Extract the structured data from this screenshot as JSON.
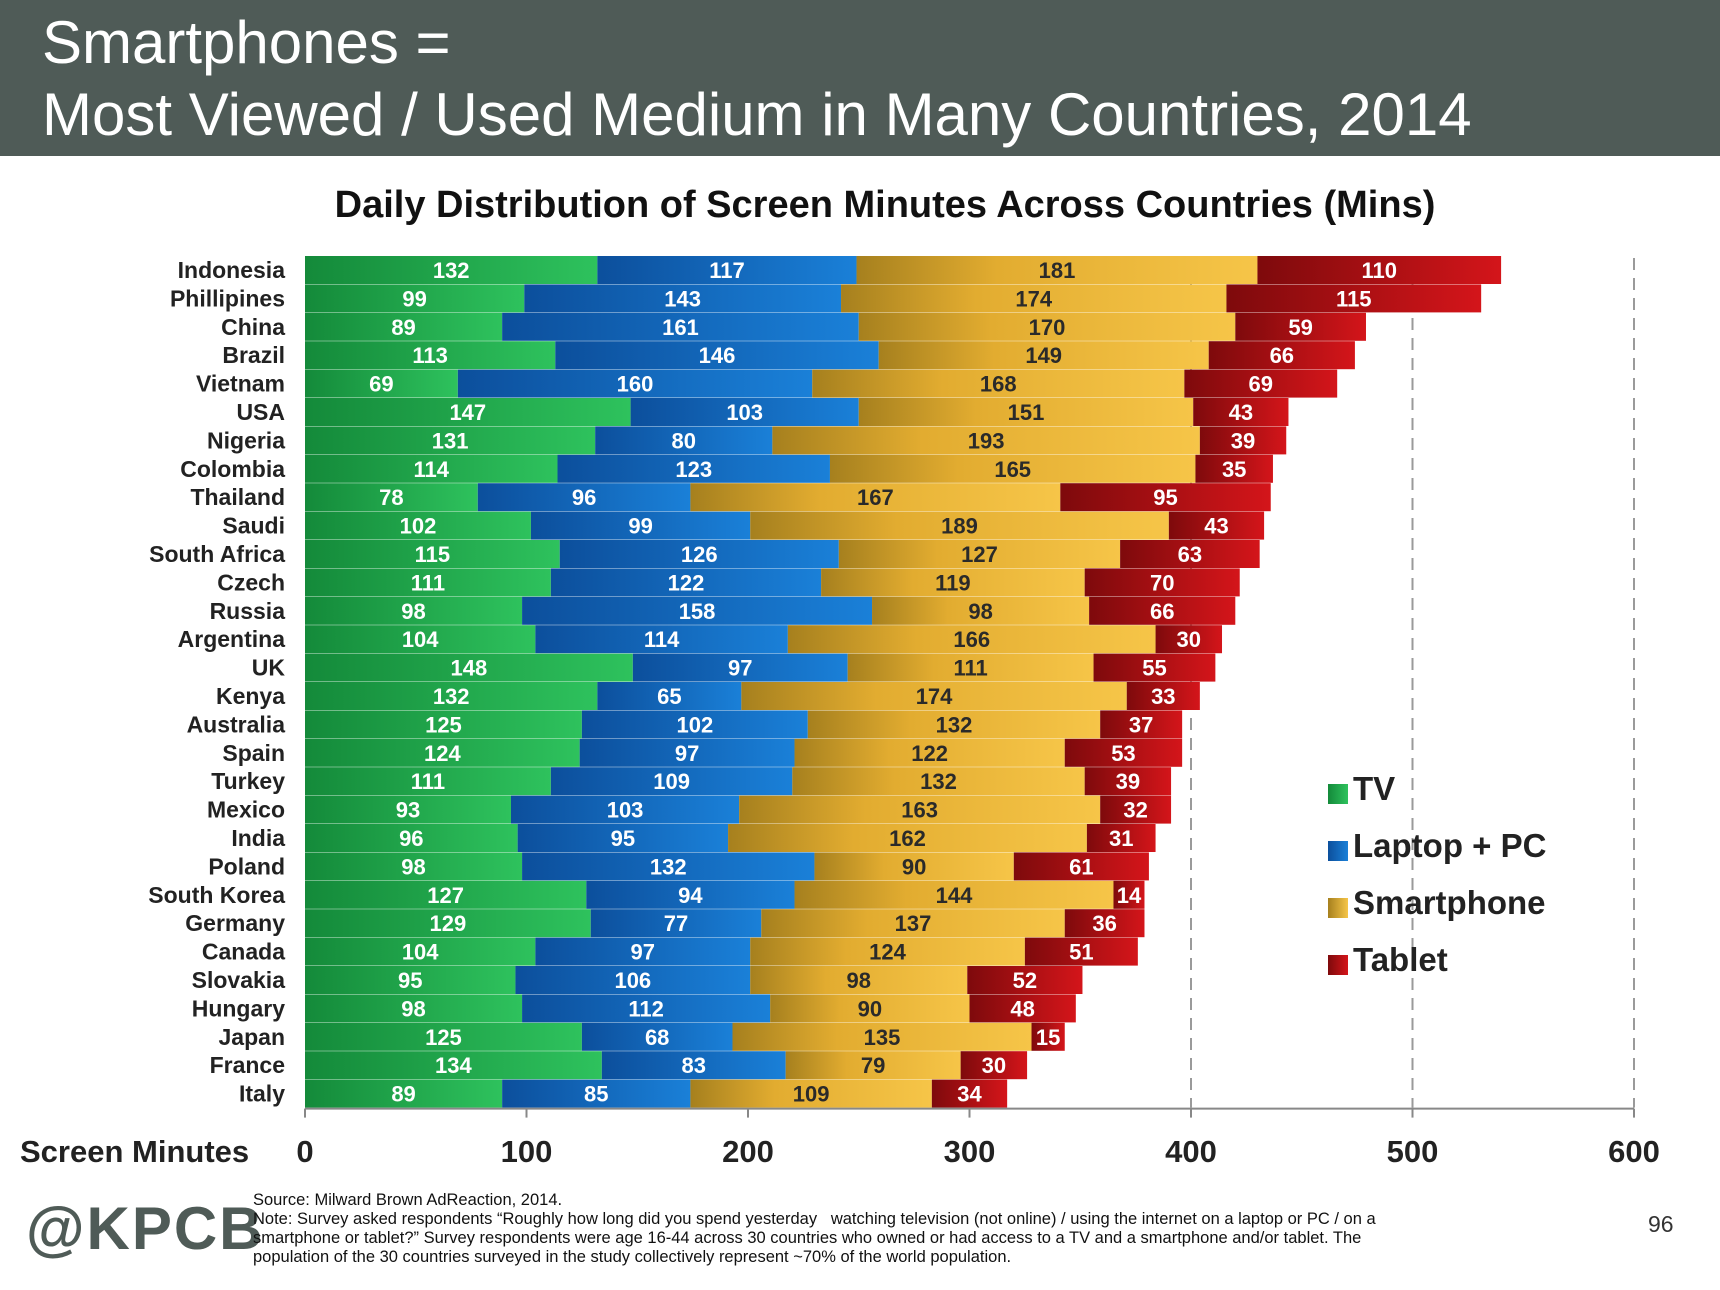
{
  "header": {
    "title_line1": "Smartphones =",
    "title_line2": "Most Viewed / Used Medium in Many Countries, 2014"
  },
  "chart_data": {
    "type": "bar",
    "orientation": "horizontal",
    "stacked": true,
    "title": "Daily Distribution of Screen Minutes Across Countries (Mins)",
    "xlabel": "Screen Minutes",
    "ylabel": "",
    "xlim": [
      0,
      600
    ],
    "xticks": [
      "0",
      "100",
      "200",
      "300",
      "400",
      "500",
      "600"
    ],
    "grid": "dashed vertical lines at 400, 500, 600",
    "legend_placement": "right",
    "categories": [
      "Indonesia",
      "Phillipines",
      "China",
      "Brazil",
      "Vietnam",
      "USA",
      "Nigeria",
      "Colombia",
      "Thailand",
      "Saudi",
      "South Africa",
      "Czech",
      "Russia",
      "Argentina",
      "UK",
      "Kenya",
      "Australia",
      "Spain",
      "Turkey",
      "Mexico",
      "India",
      "Poland",
      "South Korea",
      "Germany",
      "Canada",
      "Slovakia",
      "Hungary",
      "Japan",
      "France",
      "Italy"
    ],
    "series": [
      {
        "name": "TV",
        "color": "#1ea84a",
        "values": [
          132,
          99,
          89,
          113,
          69,
          147,
          131,
          114,
          78,
          102,
          115,
          111,
          98,
          104,
          148,
          132,
          125,
          124,
          111,
          93,
          96,
          98,
          127,
          129,
          104,
          95,
          98,
          125,
          134,
          89
        ]
      },
      {
        "name": "Laptop + PC",
        "color": "#1266c2",
        "values": [
          117,
          143,
          161,
          146,
          160,
          103,
          80,
          123,
          96,
          99,
          126,
          122,
          158,
          114,
          97,
          65,
          102,
          97,
          109,
          103,
          95,
          132,
          94,
          77,
          97,
          106,
          112,
          68,
          83,
          85
        ]
      },
      {
        "name": "Smartphone",
        "color": "#e8ae22",
        "values": [
          181,
          174,
          170,
          149,
          168,
          151,
          193,
          165,
          167,
          189,
          127,
          119,
          98,
          166,
          111,
          174,
          132,
          122,
          132,
          163,
          162,
          90,
          144,
          137,
          124,
          98,
          90,
          135,
          79,
          109
        ]
      },
      {
        "name": "Tablet",
        "color": "#b80d10",
        "values": [
          110,
          115,
          59,
          66,
          69,
          43,
          39,
          35,
          95,
          43,
          63,
          70,
          66,
          30,
          55,
          33,
          37,
          53,
          39,
          32,
          31,
          61,
          14,
          36,
          51,
          52,
          48,
          15,
          30,
          34
        ]
      }
    ]
  },
  "footer": {
    "logo": "@KPCB",
    "source_line": "Source: Milward Brown AdReaction, 2014.",
    "note_line1": "Note: Survey asked respondents “Roughly how long did you spend yesterday   watching television (not online) / using the internet on a laptop or PC / on a",
    "note_line2": "smartphone or tablet?” Survey respondents were age 16-44 across 30 countries who owned or had access to a TV and a smartphone and/or tablet. The",
    "note_line3": "population of the 30 countries surveyed in the study collectively represent ~70% of the world population.",
    "page_number": "96"
  }
}
